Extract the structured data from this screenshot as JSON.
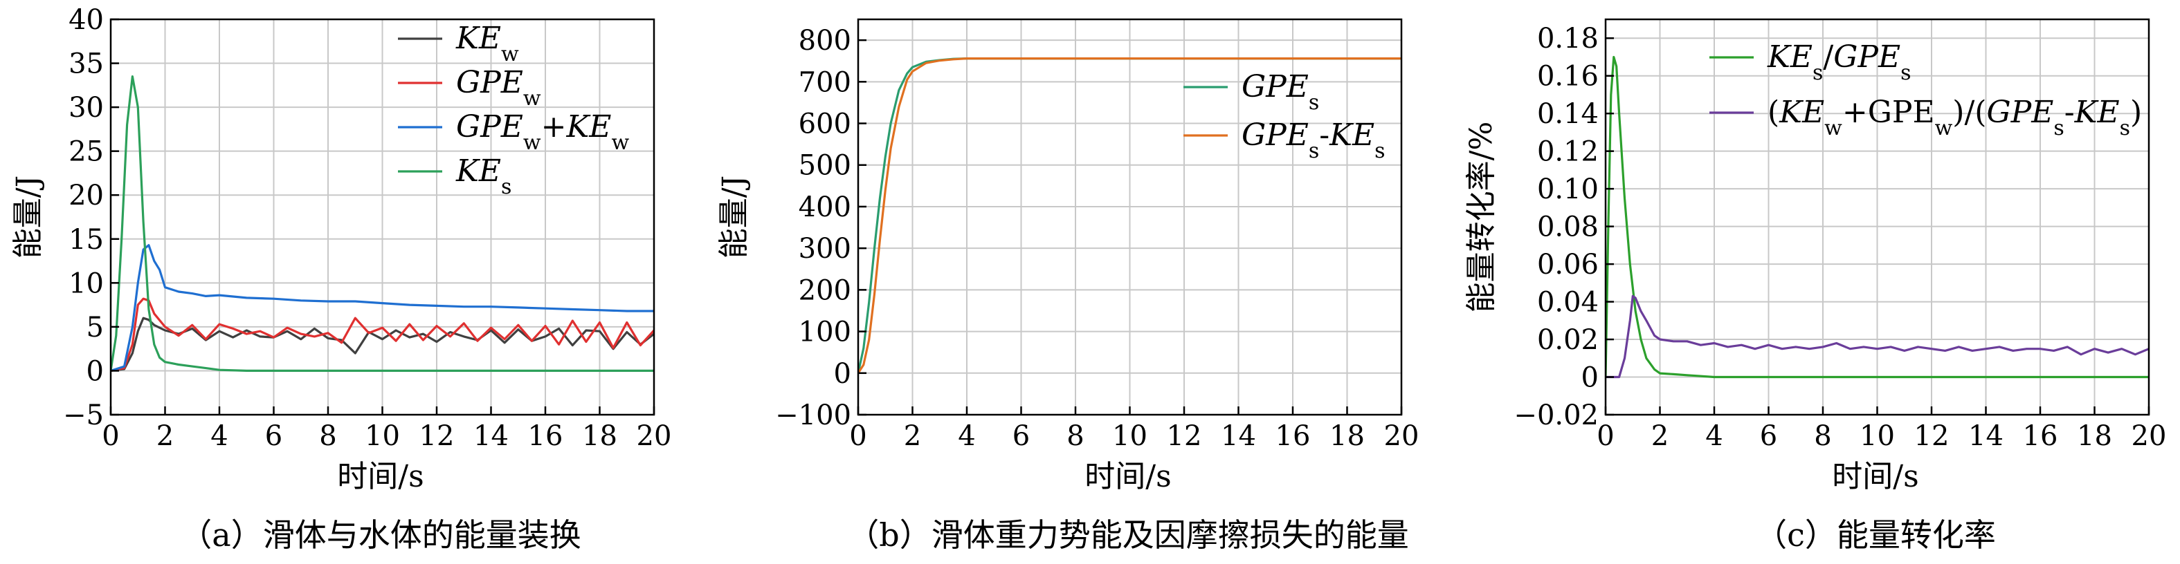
{
  "chart_data": [
    {
      "id": "a",
      "type": "line",
      "caption": "（a）滑体与水体的能量装换",
      "xlabel": "时间/s",
      "ylabel": "能量/J",
      "xlim": [
        0,
        20
      ],
      "ylim": [
        -5,
        40
      ],
      "xticks": [
        "0",
        "2",
        "4",
        "6",
        "8",
        "10",
        "12",
        "14",
        "16",
        "18",
        "20"
      ],
      "yticks": [
        "−5",
        "0",
        "5",
        "10",
        "15",
        "20",
        "25",
        "30",
        "35",
        "40"
      ],
      "grid": true,
      "legend_position": "top-right",
      "series": [
        {
          "name": "KEw",
          "label": [
            {
              "t": "KE",
              "i": true
            },
            {
              "t": "w",
              "sub": true
            }
          ],
          "color": "#404040",
          "x": [
            0,
            0.5,
            0.8,
            1.0,
            1.2,
            1.4,
            1.6,
            2.0,
            2.5,
            3,
            3.5,
            4,
            4.5,
            5,
            5.5,
            6,
            6.5,
            7,
            7.5,
            8,
            8.5,
            9,
            9.5,
            10,
            10.5,
            11,
            11.5,
            12,
            12.5,
            13,
            13.5,
            14,
            14.5,
            15,
            15.5,
            16,
            16.5,
            17,
            17.5,
            18,
            18.5,
            19,
            19.5,
            20
          ],
          "y": [
            0,
            0.2,
            2,
            4.5,
            6,
            5.8,
            5.2,
            4.6,
            4.2,
            4.8,
            3.5,
            4.5,
            3.8,
            4.6,
            3.9,
            3.8,
            4.5,
            3.6,
            4.8,
            3.7,
            3.5,
            2,
            4.4,
            3.6,
            4.6,
            3.8,
            4.2,
            3.3,
            4.4,
            3.9,
            3.5,
            4.6,
            3.2,
            4.7,
            3.4,
            3.9,
            4.8,
            2.9,
            4.6,
            4.5,
            2.5,
            4.4,
            3.0,
            4.2
          ]
        },
        {
          "name": "GPEw",
          "label": [
            {
              "t": "GPE",
              "i": true
            },
            {
              "t": "w",
              "sub": true
            }
          ],
          "color": "#e03030",
          "x": [
            0,
            0.5,
            0.8,
            1.0,
            1.2,
            1.4,
            1.6,
            2.0,
            2.5,
            3,
            3.5,
            4,
            4.5,
            5,
            5.5,
            6,
            6.5,
            7,
            7.5,
            8,
            8.5,
            9,
            9.5,
            10,
            10.5,
            11,
            11.5,
            12,
            12.5,
            13,
            13.5,
            14,
            14.5,
            15,
            15.5,
            16,
            16.5,
            17,
            17.5,
            18,
            18.5,
            19,
            19.5,
            20
          ],
          "y": [
            0,
            0.3,
            3,
            7.5,
            8.2,
            8.0,
            6.5,
            5.0,
            4.0,
            5.2,
            3.6,
            5.3,
            4.8,
            4.2,
            4.5,
            3.8,
            4.9,
            4.2,
            3.9,
            4.3,
            3.2,
            6.0,
            4.3,
            4.9,
            3.4,
            5.3,
            3.5,
            5.1,
            3.9,
            5.4,
            3.4,
            4.9,
            3.6,
            5.2,
            3.4,
            5.1,
            3.0,
            5.7,
            3.3,
            5.5,
            2.6,
            5.5,
            2.9,
            4.6
          ]
        },
        {
          "name": "GPEw+KEw",
          "label": [
            {
              "t": "GPE",
              "i": true
            },
            {
              "t": "w",
              "sub": true
            },
            {
              "t": "+",
              "i": false
            },
            {
              "t": "KE",
              "i": true
            },
            {
              "t": "w",
              "sub": true
            }
          ],
          "color": "#1f6fd1",
          "x": [
            0,
            0.5,
            0.8,
            1.0,
            1.2,
            1.4,
            1.6,
            1.8,
            2.0,
            2.5,
            3,
            3.5,
            4,
            5,
            6,
            7,
            8,
            9,
            10,
            11,
            12,
            13,
            14,
            15,
            16,
            17,
            18,
            19,
            20
          ],
          "y": [
            0,
            0.5,
            5,
            10,
            13.8,
            14.3,
            12.5,
            11.5,
            9.5,
            9.0,
            8.8,
            8.5,
            8.6,
            8.3,
            8.2,
            8.0,
            7.9,
            7.9,
            7.7,
            7.5,
            7.4,
            7.3,
            7.3,
            7.2,
            7.1,
            7.0,
            6.9,
            6.8,
            6.8
          ]
        },
        {
          "name": "KEs",
          "label": [
            {
              "t": "KE",
              "i": true
            },
            {
              "t": "s",
              "sub": true
            }
          ],
          "color": "#2ca05a",
          "x": [
            0,
            0.2,
            0.4,
            0.6,
            0.8,
            1.0,
            1.2,
            1.4,
            1.6,
            1.8,
            2.0,
            2.5,
            3,
            3.5,
            4,
            5,
            6,
            8,
            10,
            12,
            14,
            16,
            18,
            20
          ],
          "y": [
            0,
            4,
            15,
            28,
            33.5,
            30,
            17,
            7,
            3,
            1.5,
            1.0,
            0.7,
            0.5,
            0.3,
            0.1,
            0,
            0,
            0,
            0,
            0,
            0,
            0,
            0,
            0
          ]
        }
      ]
    },
    {
      "id": "b",
      "type": "line",
      "caption": "（b）滑体重力势能及因摩擦损失的能量",
      "xlabel": "时间/s",
      "ylabel": "能量/J",
      "xlim": [
        0,
        20
      ],
      "ylim": [
        -100,
        850
      ],
      "xticks": [
        "0",
        "2",
        "4",
        "6",
        "8",
        "10",
        "12",
        "14",
        "16",
        "18",
        "20"
      ],
      "yticks": [
        "−100",
        "0",
        "100",
        "200",
        "300",
        "400",
        "500",
        "600",
        "700",
        "800"
      ],
      "grid": true,
      "legend_position": "center-right",
      "series": [
        {
          "name": "GPEs",
          "label": [
            {
              "t": "GPE",
              "i": true
            },
            {
              "t": "s",
              "sub": true
            }
          ],
          "color": "#2a9d6f",
          "x": [
            0,
            0.2,
            0.4,
            0.6,
            0.8,
            1.0,
            1.2,
            1.5,
            1.8,
            2.0,
            2.5,
            3,
            3.5,
            4,
            5,
            6,
            8,
            10,
            12,
            14,
            16,
            18,
            20
          ],
          "y": [
            0,
            60,
            170,
            300,
            420,
            520,
            600,
            680,
            720,
            735,
            748,
            752,
            755,
            756,
            756,
            756,
            756,
            756,
            756,
            756,
            756,
            756,
            756
          ]
        },
        {
          "name": "GPEs-KEs",
          "label": [
            {
              "t": "GPE",
              "i": true
            },
            {
              "t": "s",
              "sub": true
            },
            {
              "t": "-",
              "i": false
            },
            {
              "t": "KE",
              "i": true
            },
            {
              "t": "s",
              "sub": true
            }
          ],
          "color": "#e07020",
          "x": [
            0,
            0.2,
            0.4,
            0.6,
            0.8,
            1.0,
            1.2,
            1.5,
            1.8,
            2.0,
            2.5,
            3,
            3.5,
            4,
            5,
            6,
            8,
            10,
            12,
            14,
            16,
            18,
            20
          ],
          "y": [
            0,
            20,
            80,
            190,
            320,
            440,
            540,
            640,
            705,
            725,
            745,
            751,
            754,
            756,
            756,
            756,
            756,
            756,
            756,
            756,
            756,
            756,
            756
          ]
        }
      ]
    },
    {
      "id": "c",
      "type": "line",
      "caption": "（c）能量转化率",
      "xlabel": "时间/s",
      "ylabel": "能量转化率/%",
      "xlim": [
        0,
        20
      ],
      "ylim": [
        -0.02,
        0.19
      ],
      "xticks": [
        "0",
        "2",
        "4",
        "6",
        "8",
        "10",
        "12",
        "14",
        "16",
        "18",
        "20"
      ],
      "yticks": [
        "−0.02",
        "0",
        "0.02",
        "0.04",
        "0.06",
        "0.08",
        "0.10",
        "0.12",
        "0.14",
        "0.16",
        "0.18"
      ],
      "grid": true,
      "legend_position": "top-right",
      "series": [
        {
          "name": "KEs/GPEs",
          "label": [
            {
              "t": "KE",
              "i": true
            },
            {
              "t": "s",
              "sub": true
            },
            {
              "t": "/",
              "i": false
            },
            {
              "t": "GPE",
              "i": true
            },
            {
              "t": "s",
              "sub": true
            }
          ],
          "color": "#2ca02c",
          "x": [
            0,
            0.1,
            0.2,
            0.3,
            0.4,
            0.5,
            0.7,
            0.9,
            1.1,
            1.3,
            1.5,
            1.8,
            2.0,
            2.5,
            3,
            4,
            6,
            8,
            10,
            12,
            14,
            16,
            18,
            20
          ],
          "y": [
            0,
            0.08,
            0.15,
            0.17,
            0.165,
            0.14,
            0.095,
            0.06,
            0.035,
            0.02,
            0.01,
            0.004,
            0.002,
            0.0015,
            0.001,
            0,
            0,
            0,
            0,
            0,
            0,
            0,
            0,
            0
          ]
        },
        {
          "name": "(KEw+GPEw)/(GPEs-KEs)",
          "label": [
            {
              "t": "(",
              "i": false
            },
            {
              "t": "KE",
              "i": true
            },
            {
              "t": "w",
              "sub": true
            },
            {
              "t": "+GPE",
              "i": false
            },
            {
              "t": "w",
              "sub": true
            },
            {
              "t": ")/(",
              "i": false
            },
            {
              "t": "GPE",
              "i": true
            },
            {
              "t": "s",
              "sub": true
            },
            {
              "t": "-",
              "i": false
            },
            {
              "t": "KE",
              "i": true
            },
            {
              "t": "s",
              "sub": true
            },
            {
              "t": ")",
              "i": false
            }
          ],
          "color": "#6a3d9a",
          "x": [
            0,
            0.5,
            0.7,
            0.9,
            1.0,
            1.1,
            1.3,
            1.5,
            1.8,
            2.0,
            2.5,
            3,
            3.5,
            4,
            4.5,
            5,
            5.5,
            6,
            6.5,
            7,
            7.5,
            8,
            8.5,
            9,
            9.5,
            10,
            10.5,
            11,
            11.5,
            12,
            12.5,
            13,
            13.5,
            14,
            14.5,
            15,
            15.5,
            16,
            16.5,
            17,
            17.5,
            18,
            18.5,
            19,
            19.5,
            20
          ],
          "y": [
            0,
            0,
            0.01,
            0.03,
            0.043,
            0.042,
            0.035,
            0.03,
            0.022,
            0.02,
            0.019,
            0.019,
            0.017,
            0.018,
            0.016,
            0.017,
            0.015,
            0.017,
            0.015,
            0.016,
            0.015,
            0.016,
            0.018,
            0.015,
            0.016,
            0.015,
            0.016,
            0.014,
            0.016,
            0.015,
            0.014,
            0.016,
            0.014,
            0.015,
            0.016,
            0.014,
            0.015,
            0.015,
            0.014,
            0.016,
            0.012,
            0.015,
            0.013,
            0.015,
            0.012,
            0.015
          ]
        }
      ]
    }
  ]
}
